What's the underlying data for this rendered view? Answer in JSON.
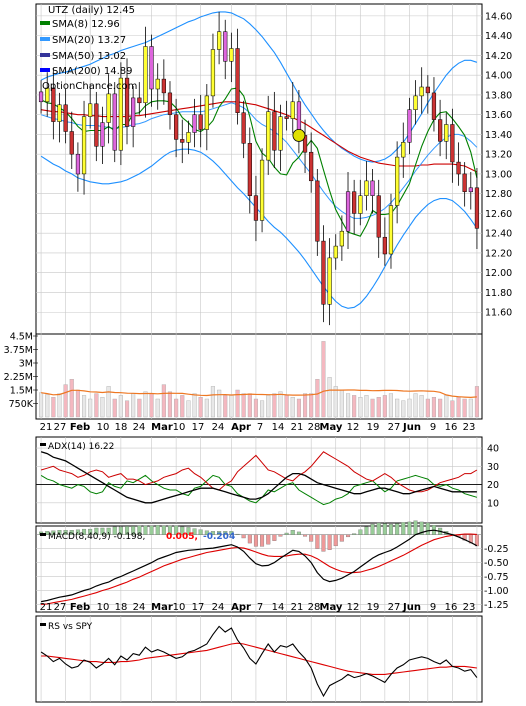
{
  "chart_data": {
    "type": "stock-chart",
    "main": {
      "type": "candlestick",
      "title": "UTZ (daily) 12.45",
      "watermark": "OptionChance.com",
      "ylim": [
        11.4,
        14.7
      ],
      "yticks": [
        "14.60",
        "14.40",
        "14.20",
        "14.00",
        "13.80",
        "13.60",
        "13.40",
        "13.20",
        "13.00",
        "12.80",
        "12.60",
        "12.40",
        "12.20",
        "12.00",
        "11.80",
        "11.60"
      ],
      "legend": [
        {
          "label": "SMA(8) 12.96",
          "color": "#008000"
        },
        {
          "label": "SMA(20) 13.27",
          "color": "#3399ff"
        },
        {
          "label": "SMA(50) 13.02",
          "color": "#333399"
        },
        {
          "label": "SMA(200) 14.89",
          "color": "#0000ff"
        }
      ],
      "colors": {
        "up": "#ffff33",
        "down": "#cc3333",
        "sma8": "#008000",
        "bb": "#1e90ff",
        "bb_alt": "#e0d000",
        "sma50": "#cc0000",
        "marker": "#e0e000"
      },
      "close": [
        13.73,
        13.87,
        13.53,
        13.7,
        13.43,
        13.2,
        13.0,
        13.58,
        13.71,
        13.28,
        13.52,
        13.81,
        13.24,
        13.97,
        13.48,
        13.77,
        13.72,
        14.29,
        13.86,
        13.96,
        13.82,
        13.6,
        13.35,
        13.32,
        13.42,
        13.6,
        13.45,
        13.79,
        14.26,
        14.44,
        14.14,
        14.27,
        13.62,
        13.31,
        12.78,
        12.53,
        13.14,
        13.63,
        13.24,
        13.58,
        13.56,
        13.73,
        13.39,
        13.22,
        12.93,
        12.32,
        11.68,
        12.15,
        12.27,
        12.42,
        12.82,
        12.6,
        12.78,
        12.93,
        12.78,
        12.36,
        12.19,
        12.68,
        13.17,
        13.32,
        13.65,
        13.79,
        13.88,
        13.82,
        13.55,
        13.33,
        13.5,
        13.12,
        13.0,
        12.82,
        12.86,
        12.45
      ],
      "sma8": [
        13.75,
        13.72,
        13.71,
        13.67,
        13.63,
        13.56,
        13.48,
        13.43,
        13.44,
        13.44,
        13.44,
        13.48,
        13.44,
        13.5,
        13.5,
        13.61,
        13.62,
        13.69,
        13.73,
        13.74,
        13.74,
        13.73,
        13.67,
        13.57,
        13.52,
        13.45,
        13.43,
        13.47,
        13.54,
        13.68,
        13.76,
        13.86,
        13.87,
        13.79,
        13.58,
        13.33,
        13.21,
        13.16,
        13.07,
        13.0,
        12.99,
        13.11,
        13.17,
        13.26,
        13.34,
        13.26,
        13.04,
        12.83,
        12.64,
        12.52,
        12.41,
        12.39,
        12.37,
        12.48,
        12.63,
        12.59,
        12.59,
        12.6,
        12.68,
        12.79,
        12.9,
        13.09,
        13.28,
        13.43,
        13.55,
        13.62,
        13.63,
        13.56,
        13.48,
        13.39,
        13.22,
        12.96
      ],
      "sma20": [
        13.6,
        13.58,
        13.56,
        13.55,
        13.53,
        13.52,
        13.5,
        13.49,
        13.49,
        13.49,
        13.48,
        13.47,
        13.46,
        13.47,
        13.48,
        13.5,
        13.51,
        13.53,
        13.56,
        13.58,
        13.6,
        13.61,
        13.62,
        13.63,
        13.63,
        13.63,
        13.63,
        13.64,
        13.66,
        13.68,
        13.7,
        13.72,
        13.7,
        13.67,
        13.62,
        13.55,
        13.5,
        13.47,
        13.43,
        13.38,
        13.32,
        13.24,
        13.16,
        13.08,
        13.0,
        12.91,
        12.82,
        12.74,
        12.67,
        12.62,
        12.58,
        12.55,
        12.55,
        12.56,
        12.58,
        12.61,
        12.65,
        12.71,
        12.78,
        12.86,
        12.94,
        13.03,
        13.11,
        13.19,
        13.26,
        13.32,
        13.37,
        13.4,
        13.4,
        13.38,
        13.33,
        13.27
      ],
      "bb_upper": [
        13.95,
        13.98,
        14.0,
        14.02,
        14.03,
        14.05,
        14.07,
        14.09,
        14.11,
        14.14,
        14.17,
        14.2,
        14.22,
        14.25,
        14.27,
        14.29,
        14.31,
        14.33,
        14.36,
        14.39,
        14.42,
        14.45,
        14.48,
        14.51,
        14.54,
        14.56,
        14.59,
        14.61,
        14.63,
        14.64,
        14.64,
        14.63,
        14.6,
        14.57,
        14.52,
        14.46,
        14.39,
        14.31,
        14.23,
        14.13,
        14.02,
        13.91,
        13.8,
        13.7,
        13.61,
        13.52,
        13.44,
        13.37,
        13.31,
        13.26,
        13.22,
        13.18,
        13.15,
        13.13,
        13.12,
        13.13,
        13.15,
        13.19,
        13.25,
        13.32,
        13.41,
        13.51,
        13.61,
        13.72,
        13.82,
        13.91,
        14.0,
        14.07,
        14.12,
        14.15,
        14.15,
        14.13
      ],
      "bb_lower": [
        13.18,
        13.14,
        13.1,
        13.07,
        13.03,
        13.0,
        12.96,
        12.94,
        12.92,
        12.91,
        12.9,
        12.9,
        12.91,
        12.92,
        12.94,
        12.97,
        13.0,
        13.04,
        13.08,
        13.13,
        13.18,
        13.22,
        13.24,
        13.25,
        13.25,
        13.24,
        13.22,
        13.18,
        13.13,
        13.07,
        13.0,
        12.93,
        12.86,
        12.8,
        12.73,
        12.66,
        12.59,
        12.52,
        12.46,
        12.41,
        12.35,
        12.28,
        12.21,
        12.13,
        12.04,
        11.95,
        11.86,
        11.78,
        11.71,
        11.66,
        11.64,
        11.65,
        11.69,
        11.76,
        11.85,
        11.95,
        12.06,
        12.17,
        12.28,
        12.38,
        12.47,
        12.56,
        12.63,
        12.69,
        12.73,
        12.75,
        12.75,
        12.73,
        12.68,
        12.62,
        12.54,
        12.45
      ],
      "sma50": [
        13.65,
        13.64,
        13.63,
        13.63,
        13.62,
        13.61,
        13.6,
        13.6,
        13.59,
        13.59,
        13.58,
        13.58,
        13.58,
        13.58,
        13.58,
        13.59,
        13.59,
        13.6,
        13.61,
        13.62,
        13.63,
        13.64,
        13.65,
        13.66,
        13.67,
        13.68,
        13.69,
        13.7,
        13.71,
        13.72,
        13.73,
        13.73,
        13.73,
        13.72,
        13.71,
        13.7,
        13.68,
        13.66,
        13.64,
        13.62,
        13.6,
        13.57,
        13.54,
        13.51,
        13.47,
        13.43,
        13.39,
        13.35,
        13.31,
        13.27,
        13.23,
        13.2,
        13.17,
        13.15,
        13.13,
        13.11,
        13.1,
        13.09,
        13.08,
        13.08,
        13.08,
        13.08,
        13.09,
        13.09,
        13.1,
        13.1,
        13.1,
        13.1,
        13.09,
        13.08,
        13.05,
        13.02
      ],
      "marker_index": 42
    },
    "volume": {
      "type": "bar",
      "ylim": [
        0,
        4500000
      ],
      "yticks": [
        "4.5M",
        "3.75M",
        "3M",
        "2.25M",
        "1.5M",
        "750K"
      ],
      "values": [
        1350000,
        1250000,
        1100000,
        1300000,
        1800000,
        2100000,
        1500000,
        1200000,
        1000000,
        1300000,
        1100000,
        1700000,
        1000000,
        1200000,
        900000,
        1300000,
        1000000,
        1400000,
        1300000,
        1000000,
        1800000,
        1400000,
        1000000,
        1200000,
        900000,
        1300000,
        1100000,
        1000000,
        1700000,
        1500000,
        1200000,
        1200000,
        1500000,
        1300000,
        1300000,
        1000000,
        900000,
        1200000,
        1300000,
        1400000,
        1200000,
        1100000,
        1000000,
        1300000,
        1300000,
        2100000,
        4200000,
        2200000,
        1700000,
        1500000,
        1300000,
        1200000,
        1100000,
        1200000,
        1000000,
        1100000,
        1200000,
        1300000,
        1000000,
        900000,
        1000000,
        1300000,
        1200000,
        1000000,
        1100000,
        1000000,
        1200000,
        900000,
        1100000,
        1000000,
        1000000,
        1700000
      ],
      "avg_color": "#ee7722"
    },
    "x_axis": {
      "labels": [
        {
          "i": 0,
          "text": "21"
        },
        {
          "i": 4,
          "text": "27"
        },
        {
          "i": 8,
          "text": "Feb"
        },
        {
          "i": 13,
          "text": "10"
        },
        {
          "i": 18,
          "text": "18"
        },
        {
          "i": 22,
          "text": "24"
        },
        {
          "i": 26,
          "text": "Mar"
        },
        {
          "i": 31,
          "text": "10"
        },
        {
          "i": 35,
          "text": "17"
        },
        {
          "i": 40,
          "text": "24"
        },
        {
          "i": 44,
          "text": "Apr"
        },
        {
          "i": 48,
          "text": "7"
        },
        {
          "i": 52,
          "text": "14"
        },
        {
          "i": 56,
          "text": "21"
        },
        {
          "i": 60,
          "text": "28"
        },
        {
          "i": 63,
          "text": "May"
        },
        {
          "i": 67,
          "text": "12"
        },
        {
          "i": 71,
          "text": "19"
        }
      ],
      "bottom_labels": [
        {
          "i": 2,
          "text": "21"
        },
        {
          "i": 4,
          "text": "27"
        },
        {
          "i": 8,
          "text": "Feb"
        },
        {
          "i": 12,
          "text": "10"
        },
        {
          "i": 16,
          "text": "18"
        },
        {
          "i": 20,
          "text": "24"
        },
        {
          "i": 23,
          "text": "Mar"
        },
        {
          "i": 27,
          "text": "10"
        },
        {
          "i": 31,
          "text": "17"
        },
        {
          "i": 35,
          "text": "24"
        },
        {
          "i": 38,
          "text": "Apr"
        },
        {
          "i": 42,
          "text": "7"
        },
        {
          "i": 46,
          "text": "14"
        },
        {
          "i": 50,
          "text": "21"
        },
        {
          "i": 54,
          "text": "28"
        },
        {
          "i": 58,
          "text": "May"
        },
        {
          "i": 61,
          "text": "12"
        },
        {
          "i": 65,
          "text": "19"
        },
        {
          "i": 68,
          "text": "27"
        },
        {
          "i": 70,
          "text": "Jun"
        }
      ]
    },
    "adx": {
      "title": "ADX(14) 16.22",
      "ylim": [
        0,
        45
      ],
      "yticks": [
        "40",
        "30",
        "20",
        "10"
      ],
      "adx": [
        38,
        37,
        35,
        34,
        33,
        31,
        29,
        27,
        25,
        23,
        21,
        19,
        17,
        15,
        13,
        12,
        11,
        10,
        10,
        11,
        12,
        13,
        14,
        15,
        16,
        17,
        18,
        18,
        18,
        17,
        16,
        15,
        14,
        13,
        12,
        12,
        13,
        15,
        18,
        21,
        24,
        26,
        26,
        25,
        23,
        21,
        20,
        19,
        18,
        17,
        16,
        15,
        15,
        16,
        17,
        18,
        18,
        17,
        16,
        15,
        15,
        16,
        17,
        18,
        19,
        18,
        17,
        16,
        16,
        16,
        16,
        16
      ],
      "pdi": [
        25,
        23,
        22,
        20,
        19,
        18,
        20,
        19,
        16,
        15,
        16,
        21,
        19,
        18,
        22,
        21,
        23,
        25,
        22,
        20,
        18,
        17,
        17,
        15,
        14,
        18,
        19,
        22,
        25,
        24,
        20,
        19,
        15,
        13,
        11,
        10,
        13,
        17,
        16,
        18,
        20,
        21,
        17,
        15,
        13,
        11,
        9,
        10,
        12,
        13,
        15,
        19,
        20,
        21,
        22,
        19,
        16,
        18,
        22,
        23,
        24,
        25,
        24,
        23,
        20,
        19,
        20,
        18,
        17,
        15,
        14,
        13
      ],
      "mdi": [
        28,
        29,
        30,
        28,
        27,
        26,
        24,
        25,
        27,
        28,
        27,
        24,
        25,
        26,
        23,
        23,
        22,
        20,
        21,
        22,
        24,
        25,
        26,
        28,
        29,
        26,
        24,
        21,
        18,
        17,
        20,
        22,
        27,
        30,
        33,
        36,
        32,
        28,
        27,
        25,
        23,
        22,
        25,
        27,
        30,
        34,
        38,
        36,
        34,
        32,
        30,
        27,
        25,
        23,
        22,
        24,
        26,
        24,
        21,
        19,
        17,
        16,
        16,
        17,
        19,
        21,
        22,
        23,
        24,
        26,
        26,
        28
      ]
    },
    "macd": {
      "title": "MACD(8,40,9) -0.198,",
      "signal_label": "0.005,",
      "hist_label": "-0.204",
      "ylim": [
        -1.35,
        0.12
      ],
      "yticks": [
        "-0.25",
        "-0.50",
        "-0.75",
        "-1.00",
        "-1.25"
      ],
      "macd": [
        -1.2,
        -1.18,
        -1.15,
        -1.12,
        -1.1,
        -1.08,
        -1.04,
        -1.0,
        -0.97,
        -0.92,
        -0.88,
        -0.85,
        -0.79,
        -0.75,
        -0.7,
        -0.65,
        -0.6,
        -0.55,
        -0.5,
        -0.44,
        -0.4,
        -0.36,
        -0.32,
        -0.3,
        -0.28,
        -0.27,
        -0.26,
        -0.25,
        -0.24,
        -0.22,
        -0.2,
        -0.18,
        -0.22,
        -0.3,
        -0.42,
        -0.52,
        -0.56,
        -0.55,
        -0.5,
        -0.42,
        -0.35,
        -0.28,
        -0.3,
        -0.38,
        -0.5,
        -0.68,
        -0.8,
        -0.84,
        -0.82,
        -0.78,
        -0.72,
        -0.66,
        -0.58,
        -0.5,
        -0.42,
        -0.36,
        -0.32,
        -0.28,
        -0.22,
        -0.15,
        -0.08,
        0.0,
        0.04,
        0.07,
        0.08,
        0.06,
        0.03,
        0.0,
        -0.04,
        -0.09,
        -0.14,
        -0.198
      ],
      "signal": [
        -1.25,
        -1.24,
        -1.22,
        -1.2,
        -1.18,
        -1.16,
        -1.13,
        -1.1,
        -1.07,
        -1.04,
        -1.0,
        -0.97,
        -0.93,
        -0.89,
        -0.85,
        -0.8,
        -0.76,
        -0.71,
        -0.66,
        -0.61,
        -0.56,
        -0.52,
        -0.48,
        -0.44,
        -0.41,
        -0.38,
        -0.35,
        -0.32,
        -0.3,
        -0.28,
        -0.26,
        -0.24,
        -0.23,
        -0.24,
        -0.27,
        -0.31,
        -0.35,
        -0.38,
        -0.39,
        -0.39,
        -0.38,
        -0.36,
        -0.35,
        -0.35,
        -0.38,
        -0.43,
        -0.5,
        -0.57,
        -0.62,
        -0.66,
        -0.68,
        -0.68,
        -0.67,
        -0.64,
        -0.61,
        -0.57,
        -0.52,
        -0.47,
        -0.42,
        -0.37,
        -0.31,
        -0.25,
        -0.19,
        -0.14,
        -0.09,
        -0.06,
        -0.03,
        -0.01,
        0.0,
        0.01,
        0.01,
        0.005
      ]
    },
    "rs": {
      "title": "RS vs SPY",
      "ratio": [
        0.6,
        0.55,
        0.48,
        0.52,
        0.45,
        0.4,
        0.42,
        0.5,
        0.47,
        0.4,
        0.45,
        0.52,
        0.44,
        0.55,
        0.5,
        0.58,
        0.56,
        0.66,
        0.6,
        0.63,
        0.6,
        0.56,
        0.52,
        0.54,
        0.6,
        0.62,
        0.66,
        0.7,
        0.82,
        0.92,
        0.85,
        0.9,
        0.75,
        0.65,
        0.52,
        0.45,
        0.58,
        0.7,
        0.6,
        0.68,
        0.66,
        0.7,
        0.6,
        0.52,
        0.4,
        0.2,
        0.05,
        0.18,
        0.22,
        0.26,
        0.32,
        0.28,
        0.3,
        0.33,
        0.3,
        0.26,
        0.22,
        0.32,
        0.4,
        0.44,
        0.5,
        0.52,
        0.54,
        0.52,
        0.48,
        0.45,
        0.5,
        0.42,
        0.4,
        0.36,
        0.38,
        0.28
      ],
      "avg": [
        0.55,
        0.55,
        0.54,
        0.53,
        0.52,
        0.51,
        0.5,
        0.49,
        0.48,
        0.48,
        0.47,
        0.47,
        0.47,
        0.48,
        0.48,
        0.49,
        0.5,
        0.52,
        0.53,
        0.54,
        0.55,
        0.56,
        0.57,
        0.58,
        0.59,
        0.6,
        0.61,
        0.62,
        0.64,
        0.66,
        0.68,
        0.7,
        0.71,
        0.7,
        0.68,
        0.66,
        0.64,
        0.62,
        0.6,
        0.58,
        0.56,
        0.54,
        0.52,
        0.5,
        0.48,
        0.46,
        0.44,
        0.42,
        0.4,
        0.38,
        0.36,
        0.35,
        0.34,
        0.33,
        0.32,
        0.32,
        0.32,
        0.33,
        0.34,
        0.35,
        0.36,
        0.37,
        0.38,
        0.39,
        0.4,
        0.41,
        0.41,
        0.42,
        0.42,
        0.42,
        0.41,
        0.4
      ]
    }
  }
}
